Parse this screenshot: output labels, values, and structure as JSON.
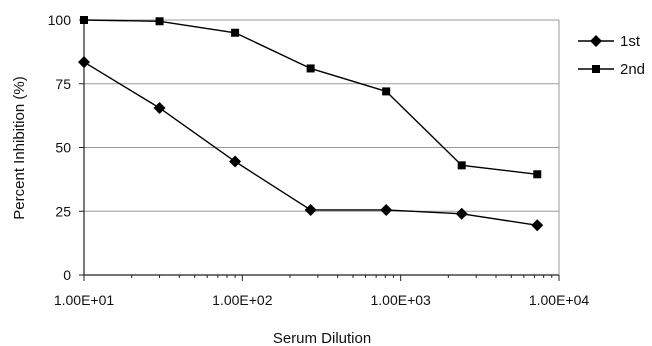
{
  "chart_data": {
    "type": "line",
    "xlabel": "Serum Dilution",
    "ylabel": "Percent Inhibition (%)",
    "x_scale": "log",
    "xlim": [
      10,
      10000
    ],
    "ylim": [
      0,
      100
    ],
    "x_ticks": [
      10,
      100,
      1000,
      10000
    ],
    "x_tick_labels": [
      "1.00E+01",
      "1.00E+02",
      "1.00E+03",
      "1.00E+04"
    ],
    "y_ticks": [
      0,
      25,
      50,
      75,
      100
    ],
    "y_tick_labels": [
      "0",
      "25",
      "50",
      "75",
      "100"
    ],
    "grid": "horizontal",
    "legend_position": "right",
    "series": [
      {
        "name": "1st",
        "marker": "diamond",
        "x": [
          10,
          30,
          90,
          270,
          810,
          2430,
          7290
        ],
        "values": [
          83.5,
          65.5,
          44.5,
          25.5,
          25.5,
          24,
          19.5
        ]
      },
      {
        "name": "2nd",
        "marker": "square",
        "x": [
          10,
          30,
          90,
          270,
          810,
          2430,
          7290
        ],
        "values": [
          100,
          99.5,
          95,
          81,
          72,
          43,
          39.5
        ]
      }
    ]
  }
}
